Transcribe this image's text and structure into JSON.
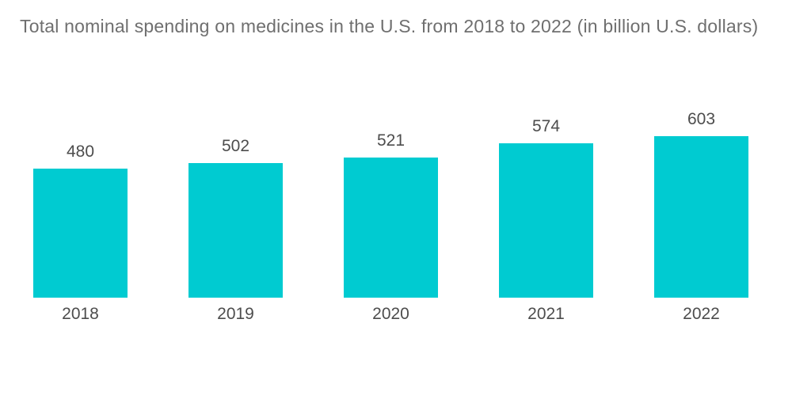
{
  "colors": {
    "bar": "#00CBD1",
    "title_text": "#6F6F6F",
    "label_text": "#4D4D4D",
    "background": "#FFFFFF"
  },
  "chart_data": {
    "type": "bar",
    "title": "Total nominal spending on medicines in the U.S. from 2018 to 2022 (in billion U.S. dollars)",
    "categories": [
      "2018",
      "2019",
      "2020",
      "2021",
      "2022"
    ],
    "values": [
      480,
      502,
      521,
      574,
      603
    ],
    "unit": "billion U.S. dollars",
    "xlabel": "",
    "ylabel": "",
    "ylim": [
      0,
      640
    ],
    "grid": false,
    "legend": false,
    "axes_shown": false,
    "value_labels_shown": true,
    "bar_color": "#00CBD1"
  }
}
